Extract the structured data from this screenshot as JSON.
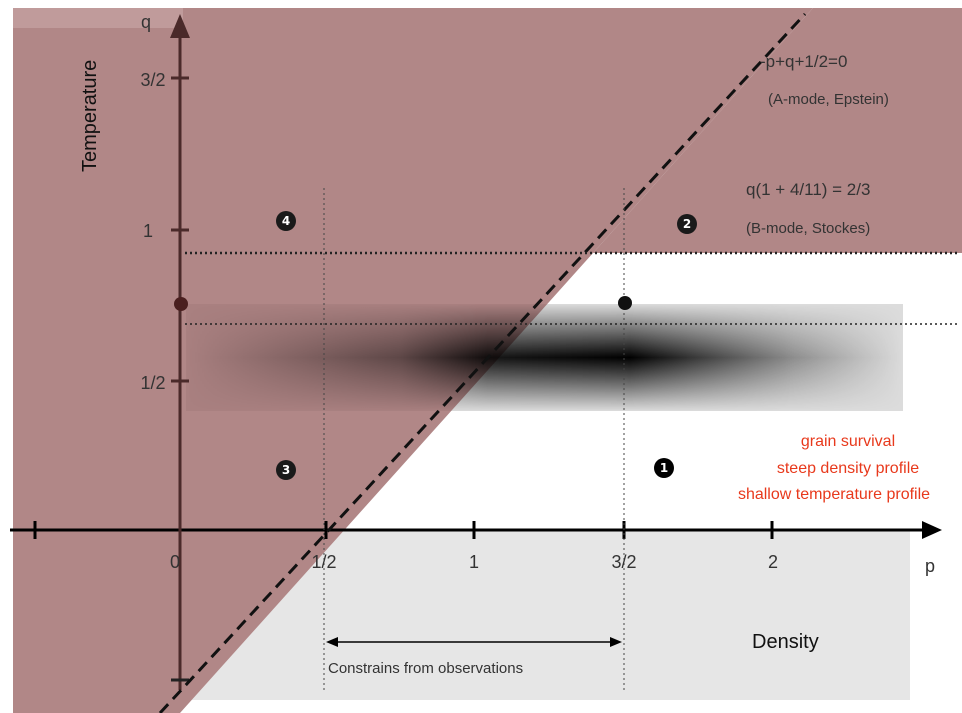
{
  "colors": {
    "region_shade": "#b18787",
    "region_light": "#c9a8a8",
    "axis": "#4a2a2a",
    "gray_region": "#e6e6e6",
    "highlight": "#e8391c"
  },
  "axes": {
    "x_var": "p",
    "y_var": "q",
    "x_title": "Density",
    "y_title": "Temperature",
    "x_ticks": [
      "0",
      "1/2",
      "1",
      "3/2",
      "2"
    ],
    "y_ticks": [
      "1/2",
      "1",
      "3/2"
    ]
  },
  "lines": {
    "a_mode_eq": "-p+q+1/2=0",
    "a_mode_label": "(A-mode, Epstein)",
    "b_mode_eq": "q(1 + 4/11) = 2/3",
    "b_mode_label": "(B-mode, Stockes)"
  },
  "regions": {
    "r1": "1",
    "r2": "2",
    "r3": "3",
    "r4": "4"
  },
  "region1_notes": [
    "grain survival",
    "steep density profile",
    "shallow temperature profile"
  ],
  "constraint_label": "Constrains from observations"
}
